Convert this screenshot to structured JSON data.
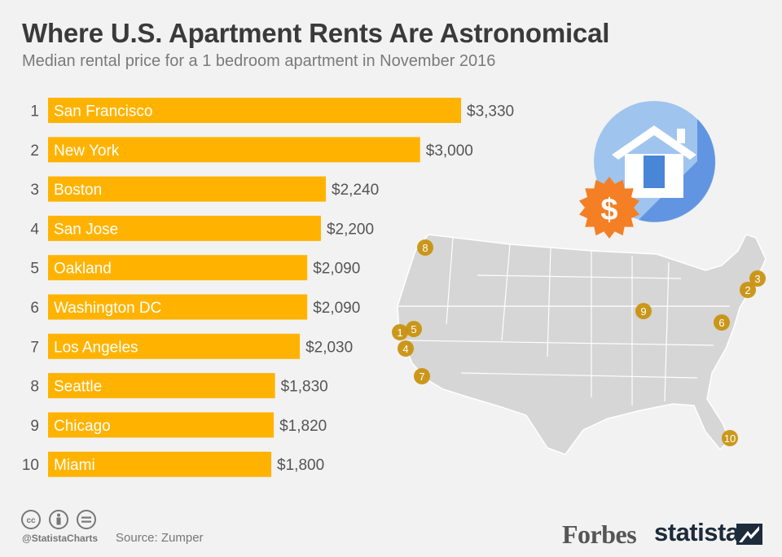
{
  "title": "Where U.S. Apartment Rents Are Astronomical",
  "subtitle": "Median rental price for a 1 bedroom apartment in November 2016",
  "chart_data": {
    "type": "bar",
    "orientation": "horizontal",
    "title": "Where U.S. Apartment Rents Are Astronomical",
    "subtitle": "Median rental price for a 1 bedroom apartment in November 2016",
    "ranks": [
      "1",
      "2",
      "3",
      "4",
      "5",
      "6",
      "7",
      "8",
      "9",
      "10"
    ],
    "categories": [
      "San Francisco",
      "New York",
      "Boston",
      "San Jose",
      "Oakland",
      "Washington DC",
      "Los Angeles",
      "Seattle",
      "Chicago",
      "Miami"
    ],
    "values": [
      3330,
      3000,
      2240,
      2200,
      2090,
      2090,
      2030,
      1830,
      1820,
      1800
    ],
    "value_labels": [
      "$3,330",
      "$3,000",
      "$2,240",
      "$2,200",
      "$2,090",
      "$2,090",
      "$2,030",
      "$1,830",
      "$1,820",
      "$1,800"
    ],
    "bar_color": "#ffb300",
    "grid": false,
    "legend": "none"
  },
  "map": {
    "markers": [
      "1",
      "2",
      "3",
      "4",
      "5",
      "6",
      "7",
      "8",
      "9",
      "10"
    ],
    "marker_color": "#c9900a",
    "land_color": "#d6d6d6"
  },
  "illustration": {
    "icons": [
      "house-icon",
      "dollar-badge-icon"
    ],
    "dollar_symbol": "$",
    "circle_color": "#9fc4ee",
    "badge_color": "#f47f24"
  },
  "footer": {
    "license_icons": [
      "cc-icon",
      "by-icon",
      "nd-icon"
    ],
    "handle": "@StatistaCharts",
    "source": "Source: Zumper",
    "forbes": "Forbes",
    "statista": "statista"
  }
}
